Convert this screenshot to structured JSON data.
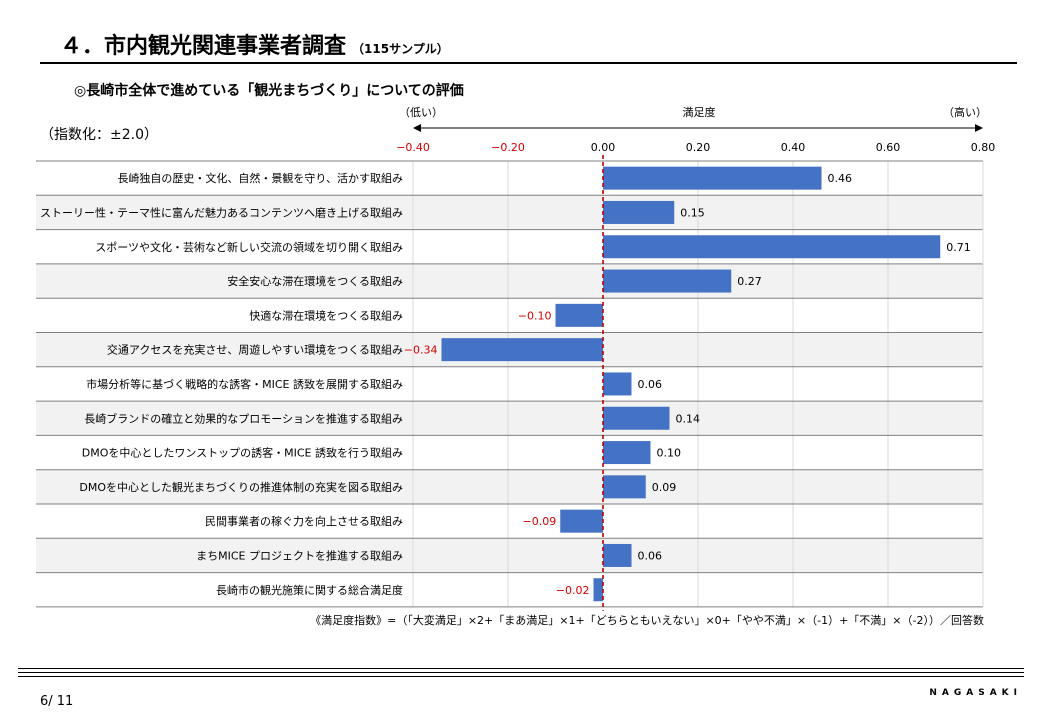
{
  "header": {
    "title": "４．市内観光関連事業者調査",
    "sample_note": "（115サンプル）"
  },
  "subtitle": "◎長崎市全体で進めている「観光まちづくり」についての評価",
  "scale_note": "（指数化：±2.0）",
  "chart_data": {
    "type": "bar",
    "orientation": "horizontal",
    "axis_label": "満足度",
    "axis_low_label": "（低い）",
    "axis_high_label": "（高い）",
    "xlim": [
      -0.4,
      0.8
    ],
    "ticks": [
      -0.4,
      -0.2,
      0.0,
      0.2,
      0.4,
      0.6,
      0.8
    ],
    "tick_labels": [
      "−0.40",
      "−0.20",
      "0.00",
      "0.20",
      "0.40",
      "0.60",
      "0.80"
    ],
    "categories": [
      "長崎独自の歴史・文化、自然・景観を守り、活かす取組み",
      "ストーリー性・テーマ性に富んだ魅力あるコンテンツへ磨き上げる取組み",
      "スポーツや文化・芸術など新しい交流の領域を切り開く取組み",
      "安全安心な滞在環境をつくる取組み",
      "快適な滞在環境をつくる取組み",
      "交通アクセスを充実させ、周遊しやすい環境をつくる取組み",
      "市場分析等に基づく戦略的な誘客・MICE 誘致を展開する取組み",
      "長崎ブランドの確立と効果的なプロモーションを推進する取組み",
      "DMOを中心としたワンストップの誘客・MICE 誘致を行う取組み",
      "DMOを中心とした観光まちづくりの推進体制の充実を図る取組み",
      "民間事業者の稼ぐ力を向上させる取組み",
      "まちMICE プロジェクトを推進する取組み",
      "長崎市の観光施策に関する総合満足度"
    ],
    "values": [
      0.46,
      0.15,
      0.71,
      0.27,
      -0.1,
      -0.34,
      0.06,
      0.14,
      0.1,
      0.09,
      -0.09,
      0.06,
      -0.02
    ],
    "value_labels": [
      "0.46",
      "0.15",
      "0.71",
      "0.27",
      "−0.10",
      "−0.34",
      "0.06",
      "0.14",
      "0.10",
      "0.09",
      "−0.09",
      "0.06",
      "−0.02"
    ],
    "grid": true,
    "colors": {
      "bar": "#4472c4",
      "negative_text": "#d40000",
      "zero_line": "#c00000",
      "stripe": "#f2f2f2",
      "grid": "#d9d9d9"
    }
  },
  "footnote": "《満足度指数》=（「大変満足」×2+「まあ満足」×1+「どちらともいえない」×0+「やや不満」×（-1）+「不満」×（-2））／回答数",
  "footer": {
    "page": "6/ 11",
    "brand": "NAGASAKI"
  }
}
